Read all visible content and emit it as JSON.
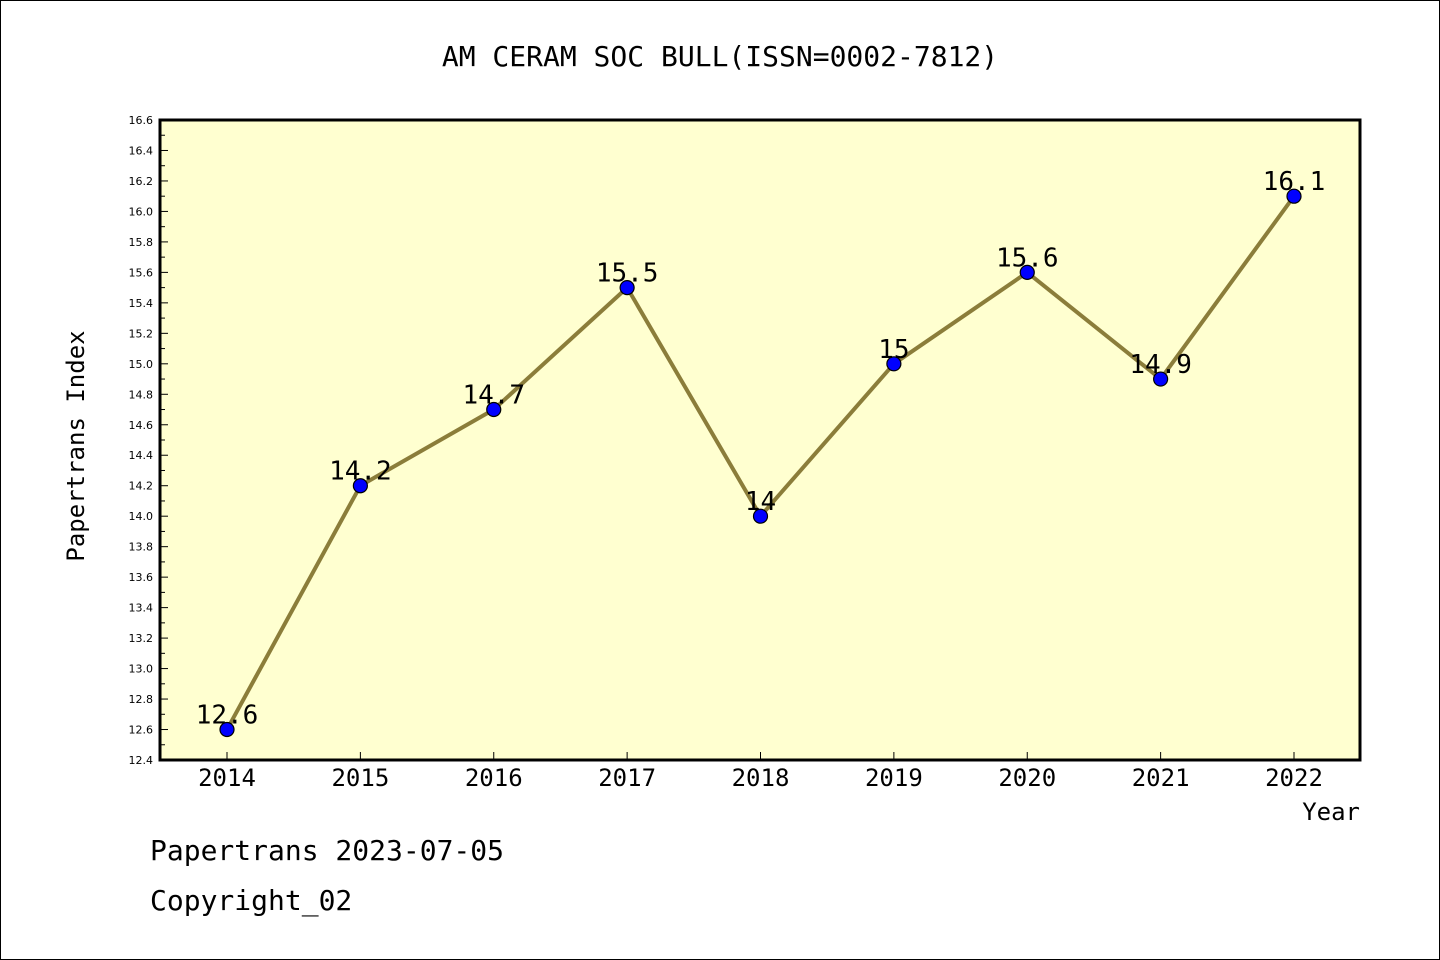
{
  "chart_data": {
    "type": "line",
    "title": "AM CERAM SOC BULL(ISSN=0002-7812)",
    "xlabel": "Year",
    "ylabel": "Papertrans Index",
    "categories": [
      "2014",
      "2015",
      "2016",
      "2017",
      "2018",
      "2019",
      "2020",
      "2021",
      "2022"
    ],
    "series": [
      {
        "values": [
          12.6,
          14.2,
          14.7,
          15.5,
          14.0,
          15.0,
          15.6,
          14.9,
          16.1
        ],
        "labels": [
          "12.6",
          "14.2",
          "14.7",
          "15.5",
          "14",
          "15",
          "15.6",
          "14.9",
          "16.1"
        ]
      }
    ],
    "ylim": [
      12.4,
      16.6
    ],
    "yticks": [
      "12.4",
      "12.6",
      "12.8",
      "13.0",
      "13.2",
      "13.4",
      "13.6",
      "13.8",
      "14.0",
      "14.2",
      "14.4",
      "14.6",
      "14.8",
      "15.0",
      "15.2",
      "15.4",
      "15.6",
      "15.8",
      "16.0",
      "16.2",
      "16.4",
      "16.6"
    ],
    "grid": false,
    "colors": {
      "plot_background": "#ffffd0",
      "line": "#8b7d3a",
      "marker": "#0000ff"
    }
  },
  "footer": {
    "line1": "Papertrans 2023-07-05",
    "line2": "Copyright_02"
  }
}
